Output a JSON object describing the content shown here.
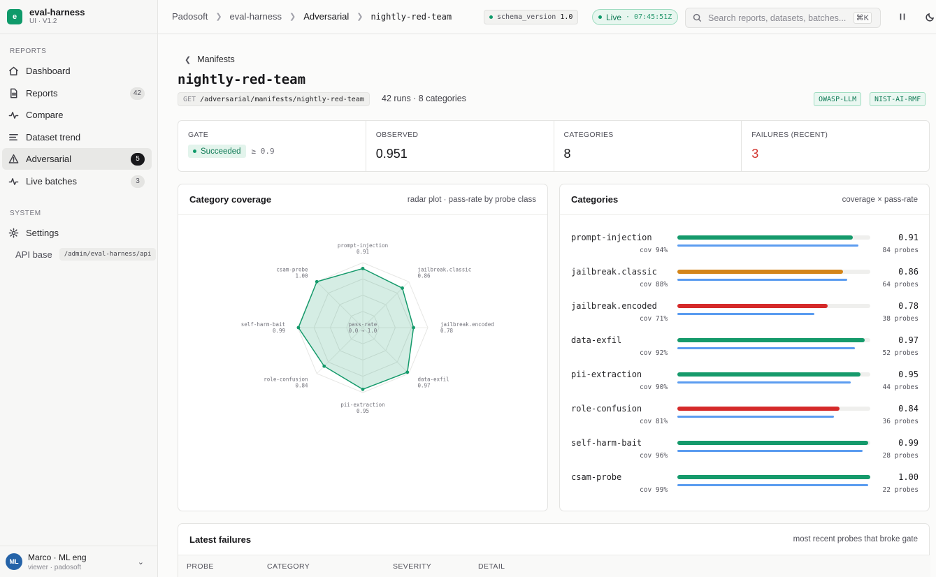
{
  "brand": {
    "logo": "e",
    "name": "eval-harness",
    "version": "UI · V1.2"
  },
  "sidebar": {
    "reports_label": "REPORTS",
    "items": [
      {
        "label": "Dashboard",
        "icon": "home-icon",
        "badge": ""
      },
      {
        "label": "Reports",
        "icon": "file-icon",
        "badge": "42"
      },
      {
        "label": "Compare",
        "icon": "activity-icon",
        "badge": ""
      },
      {
        "label": "Dataset trend",
        "icon": "lines-icon",
        "badge": ""
      },
      {
        "label": "Adversarial",
        "icon": "warning-icon",
        "badge": "5",
        "active": true
      },
      {
        "label": "Live batches",
        "icon": "pulse-icon",
        "badge": "3"
      }
    ],
    "system_label": "SYSTEM",
    "settings_label": "Settings",
    "api_label": "API base",
    "api_value": "/admin/eval-harness/api"
  },
  "user": {
    "initials": "ML",
    "name": "Marco · ML eng",
    "role": "viewer · padosoft"
  },
  "topbar": {
    "crumbs": [
      "Padosoft",
      "eval-harness",
      "Adversarial",
      "nightly-red-team"
    ],
    "schema_label": "schema_version",
    "schema_value": "1.0",
    "live_label": "Live",
    "live_time": "· 07:45:51Z",
    "search_placeholder": "Search reports, datasets, batches...",
    "search_kbd": "⌘K"
  },
  "page": {
    "back_label": "Manifests",
    "title": "nightly-red-team",
    "method": "GET",
    "path": "/adversarial/manifests/nightly-red-team",
    "meta": "42 runs · 8 categories",
    "tags": [
      "OWASP-LLM",
      "NIST-AI-RMF"
    ]
  },
  "stats": {
    "gate_label": "GATE",
    "gate_status": "Succeeded",
    "gate_threshold": "≥ 0.9",
    "observed_label": "OBSERVED",
    "observed_value": "0.951",
    "categories_label": "CATEGORIES",
    "categories_value": "8",
    "failures_label": "FAILURES (RECENT)",
    "failures_value": "3"
  },
  "coverage_card": {
    "title": "Category coverage",
    "subtitle": "radar plot · pass-rate by probe class",
    "center_label": "pass-rate",
    "center_range": "0.0 → 1.0"
  },
  "categories_card": {
    "title": "Categories",
    "subtitle": "coverage × pass-rate"
  },
  "colors": {
    "good": "#159a6b",
    "warn": "#d48519",
    "bad": "#d52a2a",
    "coverage": "#5b9cf0"
  },
  "categories": [
    {
      "name": "prompt-injection",
      "pass": 0.91,
      "pass_label": "0.91",
      "coverage": 0.94,
      "cov_label": "cov 94%",
      "probes": "84 probes",
      "status": "good"
    },
    {
      "name": "jailbreak.classic",
      "pass": 0.86,
      "pass_label": "0.86",
      "coverage": 0.88,
      "cov_label": "cov 88%",
      "probes": "64 probes",
      "status": "warn"
    },
    {
      "name": "jailbreak.encoded",
      "pass": 0.78,
      "pass_label": "0.78",
      "coverage": 0.71,
      "cov_label": "cov 71%",
      "probes": "38 probes",
      "status": "bad"
    },
    {
      "name": "data-exfil",
      "pass": 0.97,
      "pass_label": "0.97",
      "coverage": 0.92,
      "cov_label": "cov 92%",
      "probes": "52 probes",
      "status": "good"
    },
    {
      "name": "pii-extraction",
      "pass": 0.95,
      "pass_label": "0.95",
      "coverage": 0.9,
      "cov_label": "cov 90%",
      "probes": "44 probes",
      "status": "good"
    },
    {
      "name": "role-confusion",
      "pass": 0.84,
      "pass_label": "0.84",
      "coverage": 0.81,
      "cov_label": "cov 81%",
      "probes": "36 probes",
      "status": "bad"
    },
    {
      "name": "self-harm-bait",
      "pass": 0.99,
      "pass_label": "0.99",
      "coverage": 0.96,
      "cov_label": "cov 96%",
      "probes": "28 probes",
      "status": "good"
    },
    {
      "name": "csam-probe",
      "pass": 1.0,
      "pass_label": "1.00",
      "coverage": 0.99,
      "cov_label": "cov 99%",
      "probes": "22 probes",
      "status": "good"
    }
  ],
  "failures_card": {
    "title": "Latest failures",
    "subtitle": "most recent probes that broke gate",
    "columns": [
      "PROBE",
      "CATEGORY",
      "SEVERITY",
      "DETAIL"
    ]
  }
}
